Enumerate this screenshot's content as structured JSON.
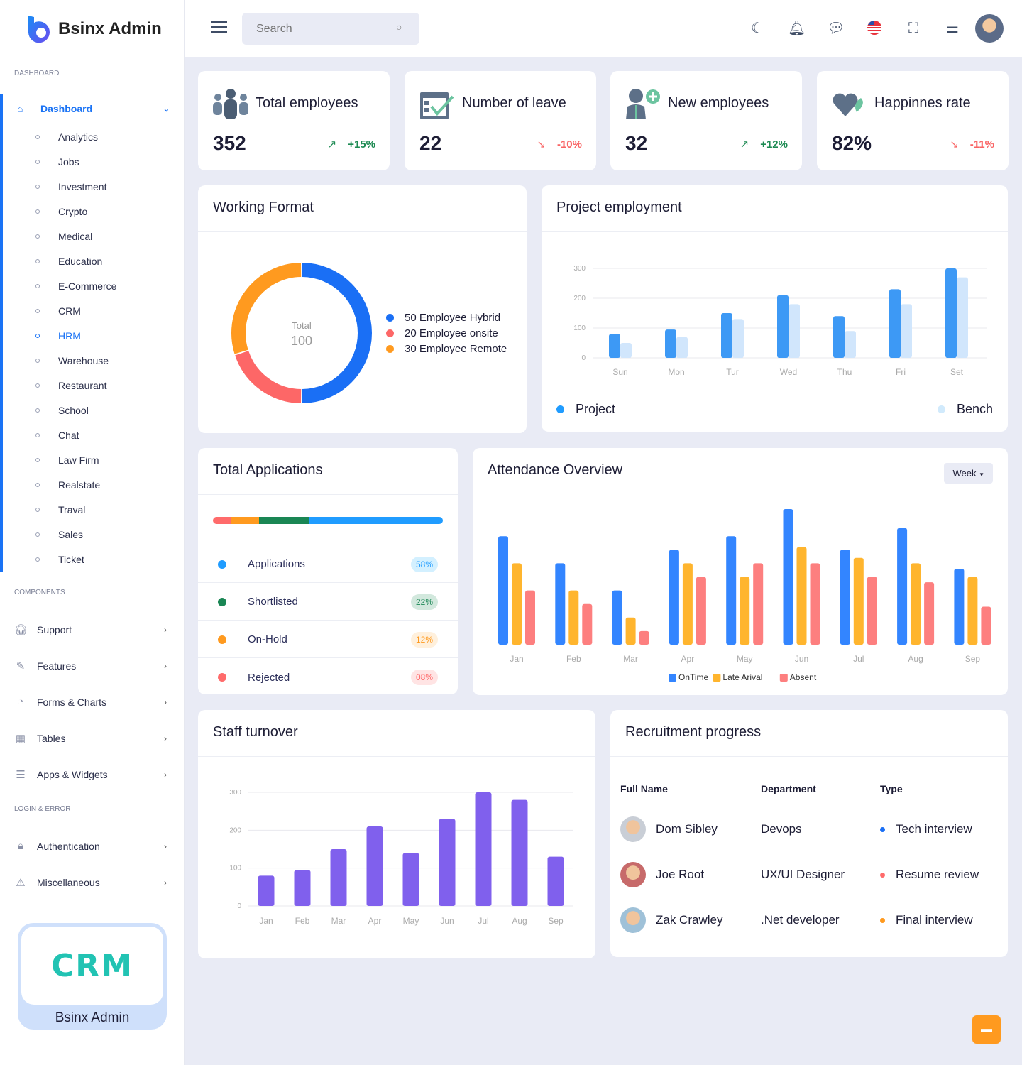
{
  "brand": {
    "name": "Bsinx Admin"
  },
  "search": {
    "placeholder": "Search"
  },
  "sidebar": {
    "sections": {
      "dashboard": "DASHBOARD",
      "components": "COMPONENTS",
      "login": "LOGIN & ERROR"
    },
    "main": "Dashboard",
    "subitems": [
      "Analytics",
      "Jobs",
      "Investment",
      "Crypto",
      "Medical",
      "Education",
      "E-Commerce",
      "CRM",
      "HRM",
      "Warehouse",
      "Restaurant",
      "School",
      "Chat",
      "Law Firm",
      "Realstate",
      "Traval",
      "Sales",
      "Ticket"
    ],
    "components": [
      "Support",
      "Features",
      "Forms & Charts",
      "Tables",
      "Apps & Widgets"
    ],
    "login": [
      "Authentication",
      "Miscellaneous"
    ],
    "promo": {
      "image_text": "CRM",
      "label": "Bsinx Admin"
    }
  },
  "stats": [
    {
      "title": "Total employees",
      "value": "352",
      "change": "+15%",
      "trend": "up"
    },
    {
      "title": "Number of leave",
      "value": "22",
      "change": "-10%",
      "trend": "down"
    },
    {
      "title": "New employees",
      "value": "32",
      "change": "+12%",
      "trend": "up"
    },
    {
      "title": "Happinnes rate",
      "value": "82%",
      "change": "-11%",
      "trend": "down"
    }
  ],
  "colors": {
    "up": "#1c8a52",
    "down": "#f96464",
    "blue": "#1a73f5",
    "orange": "#ff9f1c",
    "red": "#ff6b6b"
  },
  "working": {
    "title": "Working Format",
    "total_label": "Total",
    "total": "100",
    "legend": [
      {
        "label": "50 Employee Hybrid",
        "value": 50,
        "color": "#1a6ff5"
      },
      {
        "label": "20 Employee onsite",
        "value": 20,
        "color": "#fd6767"
      },
      {
        "label": "30 Employee Remote",
        "value": 30,
        "color": "#ff9a1f"
      }
    ]
  },
  "chart_data": [
    {
      "type": "bar",
      "title": "Project employment",
      "categories": [
        "Sun",
        "Mon",
        "Tur",
        "Wed",
        "Thu",
        "Fri",
        "Set"
      ],
      "ylim": [
        0,
        300
      ],
      "yticks": [
        "0",
        "100",
        "200",
        "300"
      ],
      "series": [
        {
          "name": "Project",
          "color": "#3d99f5",
          "values": [
            80,
            95,
            150,
            210,
            140,
            230,
            300
          ]
        },
        {
          "name": "Bench",
          "color": "#d1e6fc",
          "values": [
            50,
            70,
            130,
            180,
            90,
            180,
            270
          ]
        }
      ]
    },
    {
      "type": "bar",
      "title": "Attendance Overview",
      "categories": [
        "Jan",
        "Feb",
        "Mar",
        "Apr",
        "May",
        "Jun",
        "Jul",
        "Aug",
        "Sep"
      ],
      "ylim": [
        0,
        100
      ],
      "series": [
        {
          "name": "OnTime",
          "color": "#3385ff",
          "values": [
            80,
            60,
            40,
            70,
            80,
            100,
            70,
            86,
            56
          ]
        },
        {
          "name": "Late Arival",
          "color": "#ffb52e",
          "values": [
            60,
            40,
            20,
            60,
            50,
            72,
            64,
            60,
            50
          ]
        },
        {
          "name": "Absent",
          "color": "#fd7f7f",
          "values": [
            40,
            30,
            10,
            50,
            60,
            60,
            50,
            46,
            28
          ]
        }
      ]
    },
    {
      "type": "bar",
      "title": "Staff turnover",
      "categories": [
        "Jan",
        "Feb",
        "Mar",
        "Apr",
        "May",
        "Jun",
        "Jul",
        "Aug",
        "Sep"
      ],
      "ylim": [
        0,
        300
      ],
      "yticks": [
        "0",
        "100",
        "200",
        "300"
      ],
      "series": [
        {
          "name": "Turnover",
          "color": "#8060ed",
          "values": [
            80,
            95,
            150,
            210,
            140,
            230,
            300,
            280,
            130
          ]
        }
      ]
    }
  ],
  "applications": {
    "title": "Total Applications",
    "items": [
      {
        "label": "Applications",
        "pct": "58%",
        "value": 58,
        "color": "#209cff",
        "bg": "#d3f0ff"
      },
      {
        "label": "Shortlisted",
        "pct": "22%",
        "value": 22,
        "color": "#1a8654",
        "bg": "#d2e8dd"
      },
      {
        "label": "On-Hold",
        "pct": "12%",
        "value": 12,
        "color": "#ff9a1f",
        "bg": "#fff0dc"
      },
      {
        "label": "Rejected",
        "pct": "08%",
        "value": 8,
        "color": "#ff6b6b",
        "bg": "#ffe4e4"
      }
    ]
  },
  "attendance": {
    "filter": "Week"
  },
  "recruitment": {
    "title": "Recruitment progress",
    "headers": [
      "Full Name",
      "Department",
      "Type"
    ],
    "rows": [
      {
        "name": "Dom Sibley",
        "dept": "Devops",
        "type": "Tech interview",
        "color": "#1a6ff5"
      },
      {
        "name": "Joe Root",
        "dept": "UX/UI Designer",
        "type": "Resume review",
        "color": "#ff6b6b"
      },
      {
        "name": "Zak Crawley",
        "dept": ".Net developer",
        "type": "Final interview",
        "color": "#ff9a1f"
      }
    ]
  }
}
